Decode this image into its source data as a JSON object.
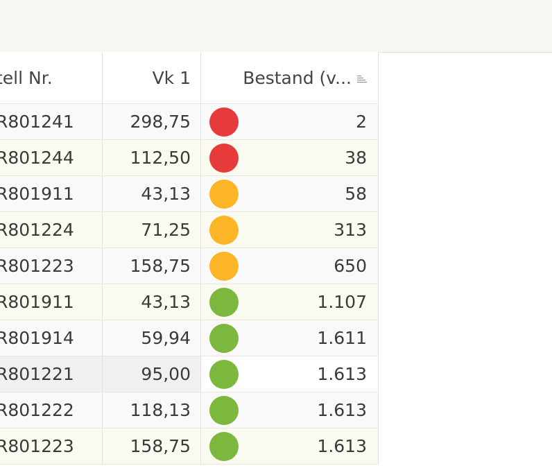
{
  "table": {
    "headers": [
      "tell Nr.",
      "Vk 1",
      "Bestand (v..."
    ],
    "rows": [
      [
        "R801241",
        "298,75",
        "2"
      ],
      [
        "R801244",
        "112,50",
        "38"
      ],
      [
        "R801911",
        "43,13",
        "58"
      ],
      [
        "R801224",
        "71,25",
        "313"
      ],
      [
        "R801223",
        "158,75",
        "650"
      ],
      [
        "R801911",
        "43,13",
        "1.107"
      ],
      [
        "R801914",
        "59,94",
        "1.611"
      ],
      [
        "R801221",
        "95,00",
        "1.613"
      ],
      [
        "R801222",
        "118,13",
        "1.613"
      ],
      [
        "R801223",
        "158,75",
        "1.613"
      ]
    ],
    "status_colors": [
      "#e53b3b",
      "#e53b3b",
      "#fbb526",
      "#fbb526",
      "#fbb526",
      "#7cb83e",
      "#7cb83e",
      "#7cb83e",
      "#7cb83e",
      "#7cb83e"
    ]
  }
}
